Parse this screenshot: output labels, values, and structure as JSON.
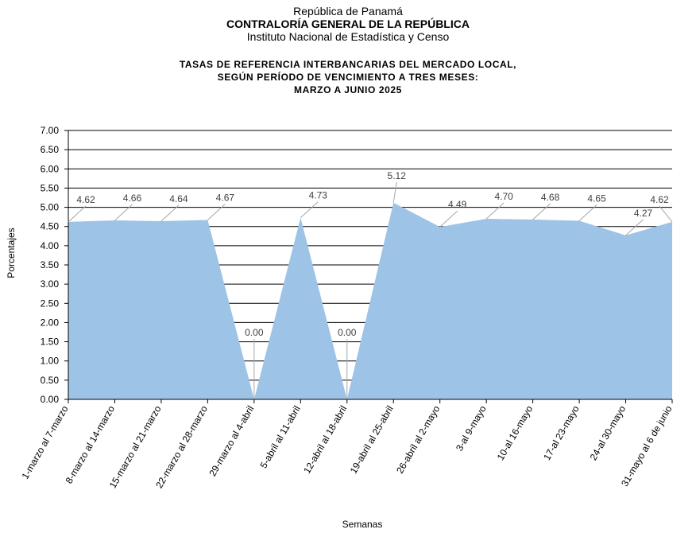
{
  "header": {
    "line1": "República de Panamá",
    "line2": "CONTRALORÍA GENERAL DE LA REPÚBLICA",
    "line3": "Instituto Nacional de Estadística y Censo"
  },
  "chart_data": {
    "type": "area",
    "title_lines": [
      "TASAS DE REFERENCIA INTERBANCARIAS DEL MERCADO LOCAL,",
      "SEGÚN PERÍODO DE VENCIMIENTO A TRES MESES:",
      "MARZO A JUNIO 2025"
    ],
    "xlabel": "Semanas",
    "ylabel": "Porcentajes",
    "categories": [
      "1-marzo al 7-marzo",
      "8-marzo al 14-marzo",
      "15-marzo al 21-marzo",
      "22-marzo al 28-marzo",
      "29-marzo al 4-abril",
      "5-abril al 11-abril",
      "12-abril al 18-abril",
      "19-abril al 25-abril",
      "26-abril al 2-mayo",
      "3-al 9-mayo",
      "10-al 16-mayo",
      "17-al 23-mayo",
      "24-al 30-mayo",
      "31-mayo al 6 de junio"
    ],
    "values": [
      4.62,
      4.66,
      4.64,
      4.67,
      0.0,
      4.73,
      0.0,
      5.12,
      4.49,
      4.7,
      4.68,
      4.65,
      4.27,
      4.62
    ],
    "value_labels": [
      "4.62",
      "4.66",
      "4.64",
      "4.67",
      "0.00",
      "4.73",
      "0.00",
      "5.12",
      "4.49",
      "4.70",
      "4.68",
      "4.65",
      "4.27",
      "4.62"
    ],
    "ylim": [
      0,
      7
    ],
    "yticks": [
      "0.00",
      "0.50",
      "1.00",
      "1.50",
      "2.00",
      "2.50",
      "3.00",
      "3.50",
      "4.00",
      "4.50",
      "5.00",
      "5.50",
      "6.00",
      "6.50",
      "7.00"
    ],
    "grid": true,
    "fill_color": "#9dc3e6",
    "grid_color": "#000000",
    "label_color": "#404040"
  }
}
